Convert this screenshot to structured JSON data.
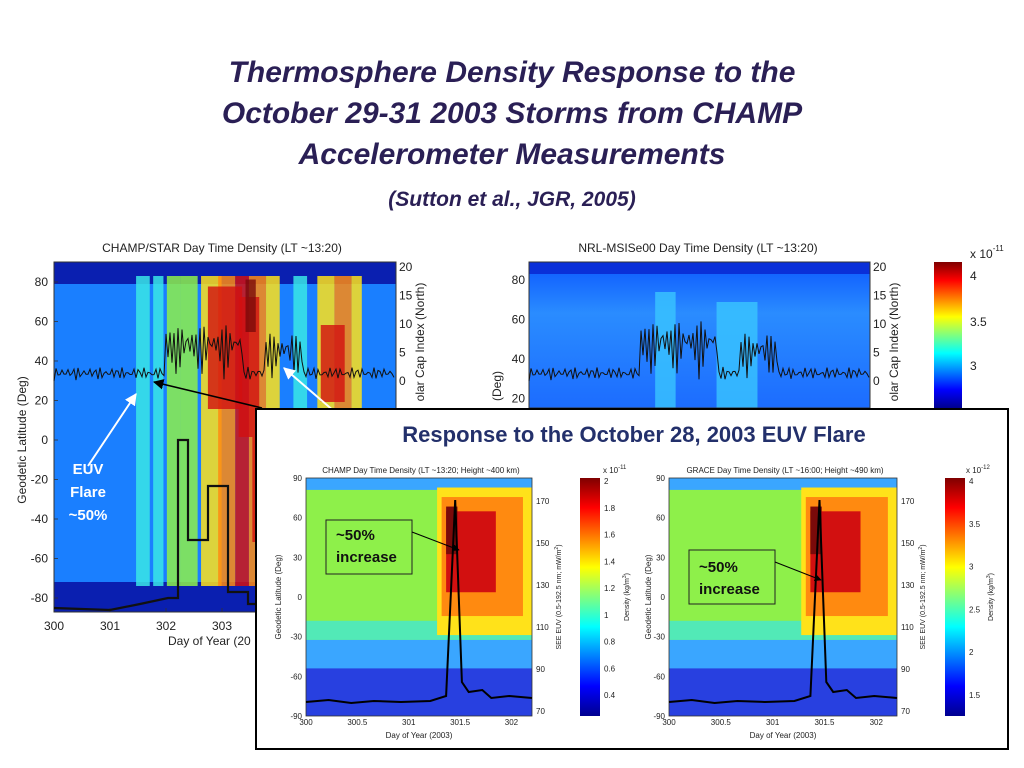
{
  "slide": {
    "title_line1": "Thermosphere Density Response to the",
    "title_line2": "October 29-31 2003 Storms from CHAMP",
    "title_line3": "Accelerometer Measurements",
    "citation": "(Sutton et al., JGR, 2005)"
  },
  "annotations": {
    "euv_flare_line1": "EUV",
    "euv_flare_line2": "Flare",
    "euv_flare_line3": "~50%",
    "increase_line1": "~50%",
    "increase_line2": "increase"
  },
  "inset": {
    "title": "Response to the October 28, 2003 EUV Flare"
  },
  "colors": {
    "title": "#2a1f55",
    "inset_title": "#23306b",
    "map_background": "#1a7fff",
    "map_low": "#0a1fb0",
    "map_mid": "#39e6e6",
    "map_green": "#8ef04a",
    "map_yellow": "#ffe21a",
    "map_orange": "#ff8a10",
    "map_red": "#d21010",
    "map_dark_red": "#7a0a0a"
  },
  "chart_data": [
    {
      "type": "heatmap",
      "title": "CHAMP/STAR Day Time Density (LT ~13:20)",
      "xlabel": "Day of Year (20",
      "ylabel": "Geodetic Latitude (Deg)",
      "y2label": "olar Cap Index (North)",
      "x_ticks": [
        "300",
        "301",
        "302",
        "303"
      ],
      "y_ticks": [
        "80",
        "60",
        "40",
        "20",
        "0",
        "-20",
        "-40",
        "-60",
        "-80"
      ],
      "y2_ticks": [
        "20",
        "15",
        "10",
        "5",
        "0"
      ],
      "xlim": [
        300,
        303.7
      ],
      "ylim": [
        -90,
        90
      ],
      "high_density_days": [
        [
          302.3,
          303.1
        ],
        [
          303.4,
          303.7
        ]
      ],
      "polar_cap_index_baseline": 0,
      "polar_cap_index_peak": 20
    },
    {
      "type": "heatmap",
      "title": "NRL-MSISe00 Day Time Density (LT ~13:20)",
      "ylabel": "(Deg)",
      "y2label": "olar Cap Index (North)",
      "y_ticks": [
        "80",
        "60",
        "40",
        "20"
      ],
      "y2_ticks": [
        "20",
        "15",
        "10",
        "5",
        "0"
      ],
      "colorbar_exponent": "x 10",
      "colorbar_exponent_power": "-11",
      "colorbar_ticks": [
        "4",
        "3.5",
        "3"
      ],
      "colorbar_range": [
        2.5,
        4.3
      ]
    },
    {
      "type": "heatmap",
      "title": "CHAMP Day Time Density (LT ~13:20; Height ~400 km)",
      "xlabel": "Day of Year (2003)",
      "ylabel": "Geodetic Latitude (Deg)",
      "y2label": "SEE EUV (0.5-192.5 nm; mW/m",
      "y2label_exponent": "2",
      "y2label_end": ")",
      "x_ticks": [
        "300",
        "300.5",
        "301",
        "301.5",
        "302"
      ],
      "y_ticks": [
        "90",
        "60",
        "30",
        "0",
        "-30",
        "-60",
        "-90"
      ],
      "y2_ticks": [
        "170",
        "150",
        "130",
        "110",
        "90",
        "70"
      ],
      "colorbar_exponent": "x 10",
      "colorbar_exponent_power": "-11",
      "colorbar_label": "Density (kg/m",
      "colorbar_label_exponent": "3",
      "colorbar_label_end": ")",
      "colorbar_ticks": [
        "2",
        "1.8",
        "1.6",
        "1.4",
        "1.2",
        "1",
        "0.8",
        "0.6",
        "0.4"
      ],
      "colorbar_range": [
        0.3,
        2.0
      ],
      "flare_day": 301.45,
      "euv_peak": 170,
      "density_increase_percent": 50
    },
    {
      "type": "heatmap",
      "title": "GRACE Day Time Density (LT ~16:00; Height ~490 km)",
      "xlabel": "Day of Year (2003)",
      "ylabel": "Geodetic Latitude (Deg)",
      "y2label": "SEE EUV (0.5-192.5 nm; mW/m",
      "y2label_exponent": "2",
      "y2label_end": ")",
      "x_ticks": [
        "300",
        "300.5",
        "301",
        "301.5",
        "302"
      ],
      "y_ticks": [
        "90",
        "60",
        "30",
        "0",
        "-30",
        "-60",
        "-90"
      ],
      "y2_ticks": [
        "170",
        "150",
        "130",
        "110",
        "90",
        "70"
      ],
      "colorbar_exponent": "x 10",
      "colorbar_exponent_power": "-12",
      "colorbar_label": "Density (kg/m",
      "colorbar_label_exponent": "3",
      "colorbar_label_end": ")",
      "colorbar_ticks": [
        "4",
        "3.5",
        "3",
        "2.5",
        "2",
        "1.5"
      ],
      "colorbar_range": [
        1.2,
        4.3
      ],
      "flare_day": 301.45,
      "euv_peak": 170,
      "density_increase_percent": 50
    }
  ]
}
